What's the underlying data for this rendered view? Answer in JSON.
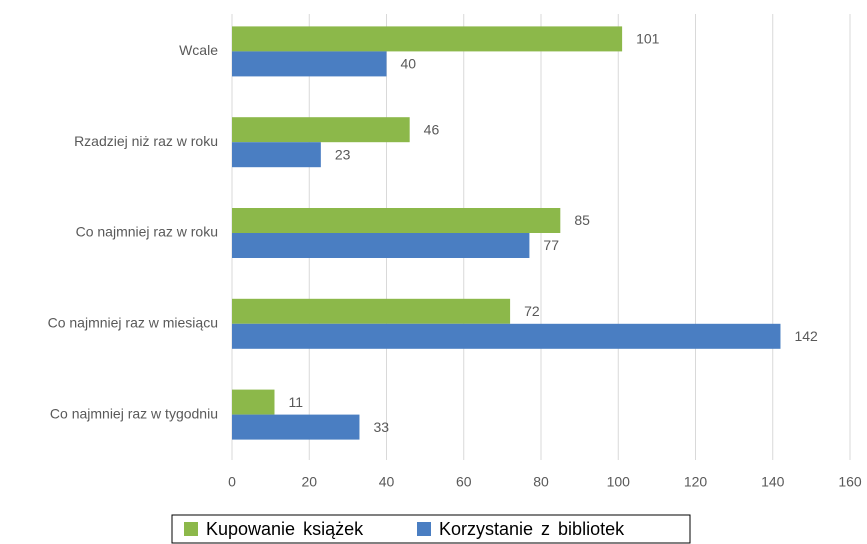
{
  "chart_data": {
    "type": "bar",
    "orientation": "horizontal",
    "categories": [
      "Wcale",
      "Rzadziej niż raz w roku",
      "Co najmniej raz w roku",
      "Co najmniej raz w miesiącu",
      "Co najmniej raz w tygodniu"
    ],
    "series": [
      {
        "name": "Kupowanie książek",
        "color": "#8cb84a",
        "values": [
          101,
          46,
          85,
          72,
          11
        ]
      },
      {
        "name": "Korzystanie z bibliotek",
        "color": "#4a7ec2",
        "values": [
          40,
          23,
          77,
          142,
          33
        ]
      }
    ],
    "xlim": [
      0,
      160
    ],
    "xticks": [
      0,
      20,
      40,
      60,
      80,
      100,
      120,
      140,
      160
    ],
    "grid": true,
    "legend": "bottom"
  }
}
